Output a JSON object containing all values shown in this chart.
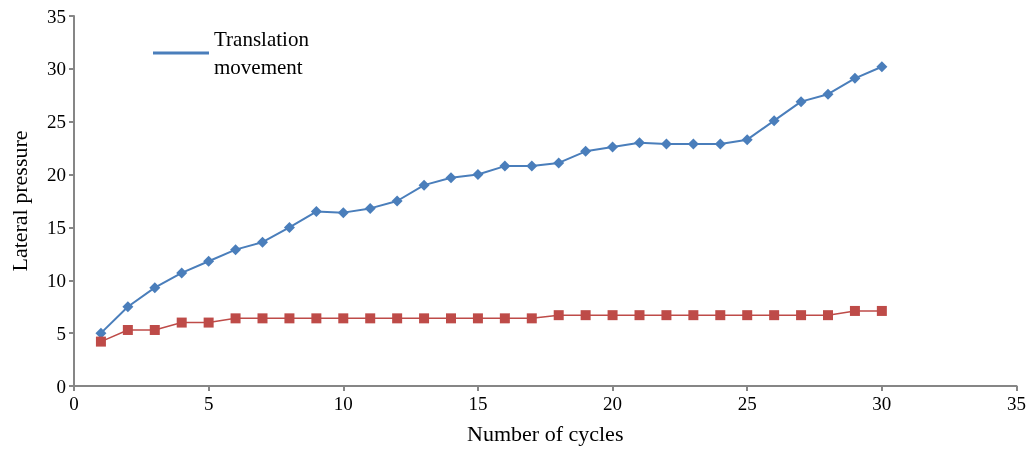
{
  "chart_data": {
    "type": "line",
    "xlabel": "Number of cycles",
    "ylabel": "Lateral pressure",
    "x": [
      1,
      2,
      3,
      4,
      5,
      6,
      7,
      8,
      9,
      10,
      11,
      12,
      13,
      14,
      15,
      16,
      17,
      18,
      19,
      20,
      21,
      22,
      23,
      24,
      25,
      26,
      27,
      28,
      29,
      30
    ],
    "series": [
      {
        "name": "Translation movement",
        "color": "#4a7ebb",
        "marker": "diamond",
        "values": [
          5.0,
          7.5,
          9.3,
          10.7,
          11.8,
          12.9,
          13.6,
          15.0,
          16.5,
          16.4,
          16.8,
          17.5,
          19.0,
          19.7,
          20.0,
          20.8,
          20.8,
          21.1,
          22.2,
          22.6,
          23.0,
          22.9,
          22.9,
          22.9,
          23.3,
          25.1,
          26.9,
          27.6,
          29.1,
          30.2
        ]
      },
      {
        "color": "#be4b48",
        "marker": "square",
        "values": [
          4.2,
          5.3,
          5.3,
          6.0,
          6.0,
          6.4,
          6.4,
          6.4,
          6.4,
          6.4,
          6.4,
          6.4,
          6.4,
          6.4,
          6.4,
          6.4,
          6.4,
          6.7,
          6.7,
          6.7,
          6.7,
          6.7,
          6.7,
          6.7,
          6.7,
          6.7,
          6.7,
          6.7,
          7.1,
          7.1
        ]
      }
    ],
    "xlim": [
      0,
      35
    ],
    "xticks": [
      0,
      5,
      10,
      15,
      20,
      25,
      30,
      35
    ],
    "ylim": [
      0,
      35
    ],
    "yticks": [
      0,
      5,
      10,
      15,
      20,
      25,
      30,
      35
    ],
    "grid": false,
    "legend": "top left",
    "line_style": "solid"
  }
}
